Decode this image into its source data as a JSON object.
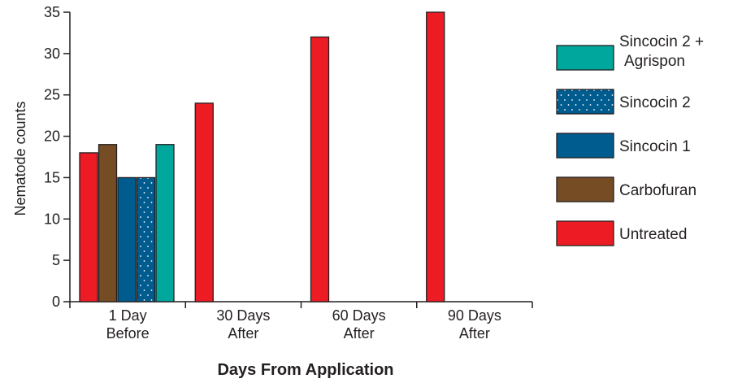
{
  "chart_data": {
    "type": "bar",
    "xlabel": "Days From Application",
    "ylabel": "Nematode counts",
    "ylim": [
      0,
      35
    ],
    "yticks": [
      0,
      5,
      10,
      15,
      20,
      25,
      30,
      35
    ],
    "grid": false,
    "legend_position": "right",
    "categories": [
      [
        "1 Day",
        "Before"
      ],
      [
        "30 Days",
        "After"
      ],
      [
        "60 Days",
        "After"
      ],
      [
        "90 Days",
        "After"
      ]
    ],
    "series": [
      {
        "name": "Untreated",
        "color": "#ed1c24",
        "pattern": "solid",
        "values": [
          18,
          24,
          32,
          35
        ]
      },
      {
        "name": "Carbofuran",
        "color": "#754c24",
        "pattern": "solid",
        "values": [
          19,
          null,
          null,
          null
        ]
      },
      {
        "name": "Sincocin 1",
        "color": "#005b8f",
        "pattern": "solid",
        "values": [
          15,
          null,
          null,
          null
        ]
      },
      {
        "name": "Sincocin 2",
        "color": "#005b8f",
        "pattern": "dotted",
        "values": [
          15,
          null,
          null,
          null
        ]
      },
      {
        "name": "Sincocin 2 + Agrispon",
        "color": "#00a79d",
        "pattern": "solid",
        "values": [
          19,
          null,
          null,
          null
        ]
      }
    ],
    "legend_order": [
      "Sincocin 2 + Agrispon",
      "Sincocin 2",
      "Sincocin 1",
      "Carbofuran",
      "Untreated"
    ],
    "legend_lines": {
      "Sincocin 2 + Agrispon": [
        "Sincocin 2 +",
        "Agrispon"
      ]
    }
  }
}
